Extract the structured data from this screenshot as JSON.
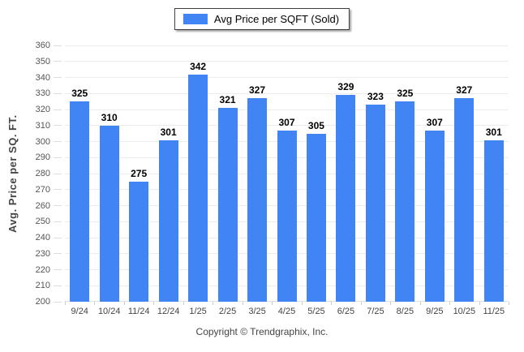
{
  "legend": {
    "label": "Avg Price per SQFT (Sold)",
    "swatch_color": "#4184f3"
  },
  "footer": {
    "copyright": "Copyright © Trendgraphix, Inc."
  },
  "chart_data": {
    "type": "bar",
    "title": "",
    "xlabel": "",
    "ylabel": "Avg. Price per SQ. FT.",
    "categories": [
      "9/24",
      "10/24",
      "11/24",
      "12/24",
      "1/25",
      "2/25",
      "3/25",
      "4/25",
      "5/25",
      "6/25",
      "7/25",
      "8/25",
      "9/25",
      "10/25",
      "11/25"
    ],
    "series": [
      {
        "name": "Avg Price per SQFT (Sold)",
        "values": [
          325,
          310,
          275,
          301,
          342,
          321,
          327,
          307,
          305,
          329,
          323,
          325,
          307,
          327,
          301
        ]
      }
    ],
    "ylim": [
      200,
      360
    ],
    "ytick_step": 10,
    "grid": true,
    "value_labels": true,
    "legend_position": "top-center",
    "bar_color": "#4184f3",
    "gridline_color": "#ececec"
  }
}
